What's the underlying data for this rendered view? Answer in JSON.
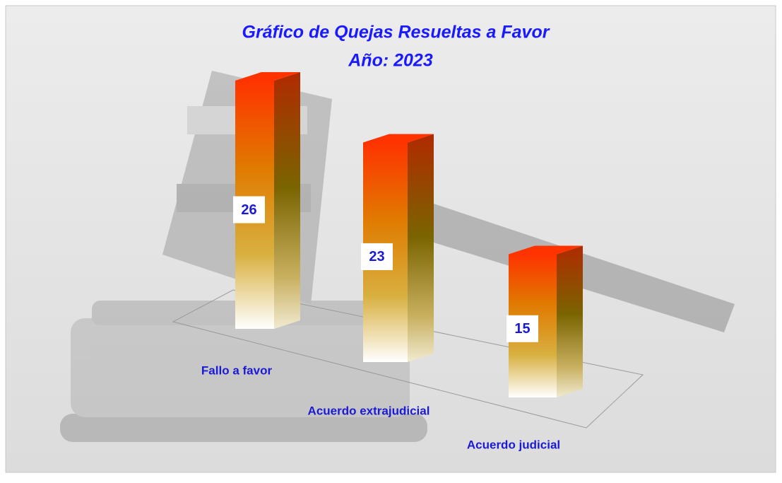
{
  "chart_data": {
    "type": "bar3d",
    "title": "Gráfico de Quejas Resueltas a Favor",
    "subtitle": "Año: 2023",
    "categories": [
      "Fallo a favor",
      "Acuerdo extrajudicial",
      "Acuerdo judicial"
    ],
    "values": [
      26,
      23,
      15
    ],
    "color": "#ff3300"
  }
}
